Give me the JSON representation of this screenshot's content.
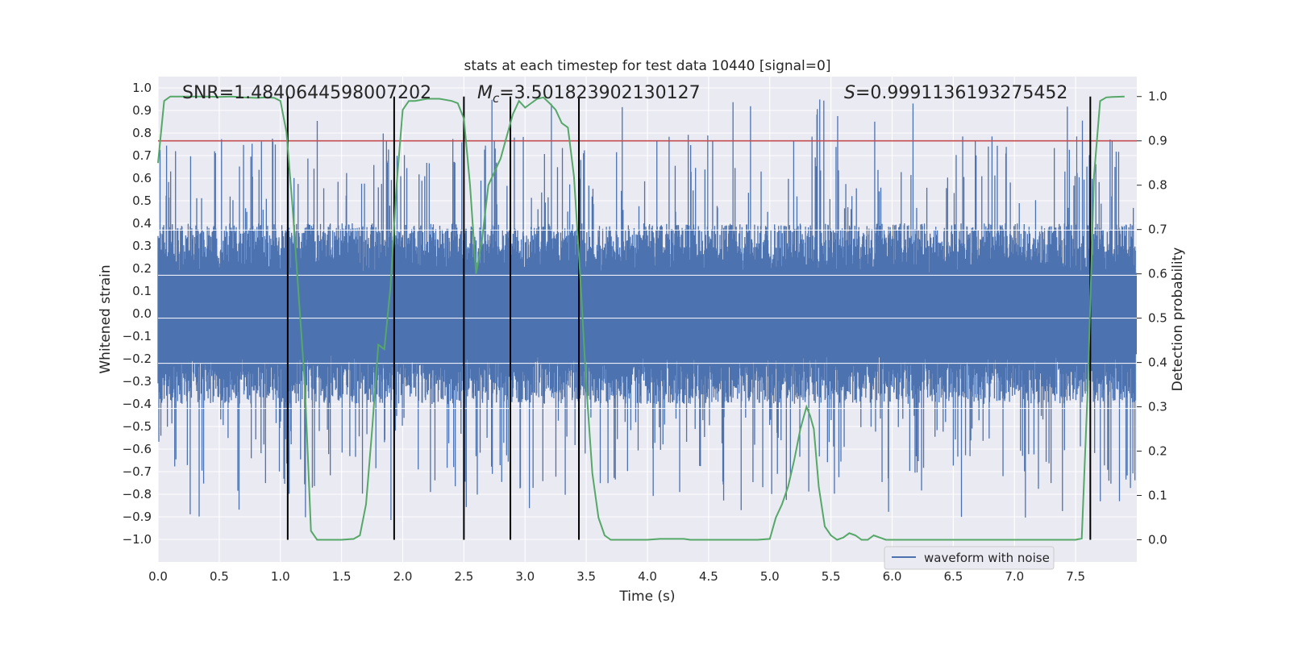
{
  "chart_data": {
    "type": "line",
    "title": "stats at each timestep for test data 10440 [signal=0]",
    "xlabel": "Time (s)",
    "ylabel": "Whitened strain",
    "ylabel_right": "Detection probability",
    "xlim": [
      0.0,
      8.0
    ],
    "ylim": [
      -1.1,
      1.05
    ],
    "ylim_right": [
      -0.05,
      1.045
    ],
    "x_ticks": [
      "0.0",
      "0.5",
      "1.0",
      "1.5",
      "2.0",
      "2.5",
      "3.0",
      "3.5",
      "4.0",
      "4.5",
      "5.0",
      "5.5",
      "6.0",
      "6.5",
      "7.0",
      "7.5"
    ],
    "y_ticks": [
      "1.0",
      "0.9",
      "0.8",
      "0.7",
      "0.6",
      "0.5",
      "0.4",
      "0.3",
      "0.2",
      "0.1",
      "0.0",
      "−0.1",
      "−0.2",
      "−0.3",
      "−0.4",
      "−0.5",
      "−0.6",
      "−0.7",
      "−0.8",
      "−0.9",
      "−1.0"
    ],
    "y_ticks_right": [
      "1.0",
      "0.9",
      "0.8",
      "0.7",
      "0.6",
      "0.5",
      "0.4",
      "0.3",
      "0.2",
      "0.1",
      "0.0"
    ],
    "grid": true,
    "legend": {
      "label": "waveform with noise",
      "location": "lower-right"
    },
    "annotations": {
      "snr": "SNR=1.4840644598007202",
      "mc_prefix": "M",
      "mc_sub": "c",
      "mc_value": "=3.501823902130127",
      "s_prefix": "S",
      "s_value": "=0.9991136193275452"
    },
    "threshold_right": 0.9,
    "event_lines_x": [
      1.06,
      1.93,
      2.5,
      2.88,
      3.44,
      7.62
    ],
    "series": [
      {
        "name": "detection probability",
        "axis": "right",
        "color": "#55a868",
        "x": [
          0.0,
          0.05,
          0.1,
          0.2,
          0.3,
          0.4,
          0.5,
          0.6,
          0.7,
          0.8,
          0.9,
          0.95,
          1.0,
          1.05,
          1.1,
          1.15,
          1.2,
          1.25,
          1.3,
          1.4,
          1.5,
          1.6,
          1.65,
          1.7,
          1.75,
          1.8,
          1.85,
          1.9,
          1.95,
          2.0,
          2.05,
          2.1,
          2.2,
          2.3,
          2.4,
          2.45,
          2.5,
          2.55,
          2.6,
          2.65,
          2.7,
          2.75,
          2.8,
          2.85,
          2.9,
          2.95,
          3.0,
          3.05,
          3.1,
          3.15,
          3.2,
          3.25,
          3.3,
          3.35,
          3.4,
          3.45,
          3.5,
          3.55,
          3.6,
          3.65,
          3.7,
          3.8,
          3.9,
          4.0,
          4.1,
          4.2,
          4.3,
          4.35,
          4.4,
          4.5,
          4.6,
          4.7,
          4.8,
          4.9,
          5.0,
          5.05,
          5.1,
          5.15,
          5.2,
          5.25,
          5.3,
          5.33,
          5.36,
          5.4,
          5.45,
          5.5,
          5.55,
          5.6,
          5.65,
          5.7,
          5.75,
          5.8,
          5.85,
          5.9,
          5.95,
          6.0,
          6.05,
          6.1,
          6.2,
          6.4,
          6.6,
          6.8,
          7.0,
          7.2,
          7.3,
          7.4,
          7.5,
          7.55,
          7.6,
          7.65,
          7.7,
          7.75,
          7.8,
          7.9
        ],
        "values": [
          0.85,
          0.99,
          1.0,
          1.0,
          1.0,
          1.0,
          0.999,
          1.0,
          0.998,
          0.997,
          0.998,
          0.997,
          0.99,
          0.92,
          0.75,
          0.55,
          0.35,
          0.02,
          0.0,
          0.0,
          0.0,
          0.002,
          0.01,
          0.08,
          0.25,
          0.44,
          0.43,
          0.57,
          0.8,
          0.97,
          0.99,
          0.99,
          0.995,
          0.995,
          0.99,
          0.985,
          0.95,
          0.8,
          0.6,
          0.68,
          0.8,
          0.83,
          0.86,
          0.91,
          0.96,
          0.99,
          0.975,
          0.985,
          0.995,
          0.998,
          0.985,
          0.97,
          0.94,
          0.93,
          0.82,
          0.6,
          0.35,
          0.15,
          0.05,
          0.01,
          0.0,
          0.0,
          0.0,
          0.0,
          0.002,
          0.002,
          0.002,
          0.0,
          0.0,
          0.0,
          0.0,
          0.0,
          0.0,
          0.0,
          0.002,
          0.05,
          0.08,
          0.12,
          0.18,
          0.25,
          0.3,
          0.28,
          0.25,
          0.12,
          0.03,
          0.01,
          0.0,
          0.005,
          0.015,
          0.01,
          0.0,
          0.0,
          0.01,
          0.005,
          0.0,
          0.0,
          0.0,
          0.0,
          0.0,
          0.0,
          0.0,
          0.0,
          0.0,
          0.0,
          0.0,
          0.0,
          0.0,
          0.003,
          0.35,
          0.82,
          0.99,
          0.998,
          0.999,
          1.0
        ]
      },
      {
        "name": "waveform with noise",
        "axis": "left",
        "color": "#4c72b0",
        "sampling": "dense noise, approx. 4096 samples over 0-8 s, band mostly within ±0.4 with spikes to about ±0.95"
      }
    ]
  }
}
